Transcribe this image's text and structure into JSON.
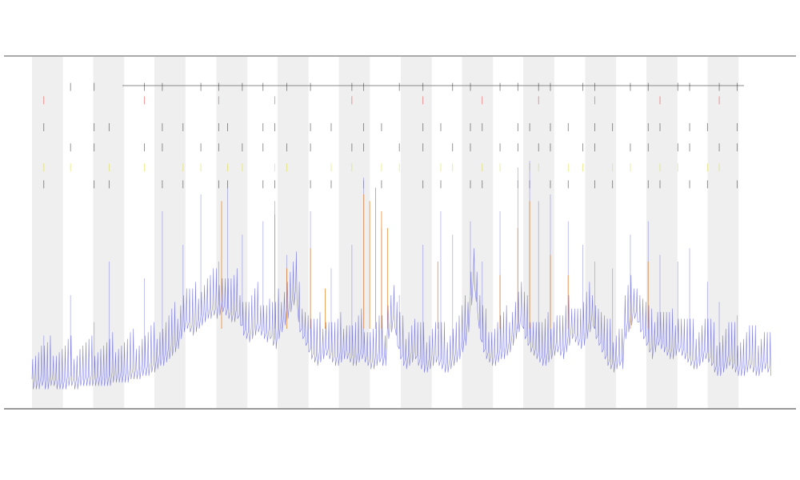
{
  "page": {
    "background": "#ffffff"
  },
  "chart_data": {
    "type": "line",
    "title": "",
    "subtitle": [],
    "xlabel": "",
    "ylabel": "",
    "grid": false,
    "legend_position": "top-left",
    "legend": [],
    "colors": {
      "main_series": "#6b6bdc",
      "band_fill": "#efefef",
      "spike_orange": "#e07a1a",
      "spike_yellow": "#d9d92a",
      "spike_red": "#e03030",
      "spike_black": "#222222",
      "axis": "#555555"
    },
    "x_range": [
      0,
      1000
    ],
    "y_range": [
      0,
      100
    ],
    "shaded_bands": [
      {
        "x0": 0,
        "x1": 42
      },
      {
        "x0": 83,
        "x1": 125
      },
      {
        "x0": 166,
        "x1": 208
      },
      {
        "x0": 250,
        "x1": 292
      },
      {
        "x0": 333,
        "x1": 375
      },
      {
        "x0": 416,
        "x1": 458
      },
      {
        "x0": 500,
        "x1": 542
      },
      {
        "x0": 583,
        "x1": 625
      },
      {
        "x0": 666,
        "x1": 708
      },
      {
        "x0": 750,
        "x1": 792
      },
      {
        "x0": 833,
        "x1": 875
      },
      {
        "x0": 916,
        "x1": 958
      }
    ],
    "series": [
      {
        "values": [
          5,
          5,
          5,
          6,
          5,
          5,
          6,
          6,
          5,
          5,
          5,
          5,
          6,
          6,
          5,
          5,
          6,
          6,
          6,
          6,
          6,
          6,
          6,
          6,
          6,
          6,
          6,
          7,
          7,
          7,
          7,
          7,
          7,
          8,
          8,
          8,
          8,
          9,
          9,
          9,
          10,
          10,
          11,
          12,
          12,
          13,
          14,
          15,
          16,
          17,
          20,
          22,
          23,
          22,
          21,
          22,
          23,
          24,
          25,
          26,
          26,
          27,
          26,
          27,
          28,
          27,
          26,
          25,
          25,
          26,
          24,
          21,
          20,
          19,
          20,
          21,
          22,
          21,
          20,
          19,
          20,
          18,
          17,
          20,
          22,
          24,
          26,
          28,
          30,
          32,
          22,
          20,
          18,
          16,
          14,
          13,
          12,
          13,
          14,
          15,
          14,
          13,
          12,
          12,
          13,
          14,
          14,
          13,
          12,
          12,
          13,
          14,
          13,
          12,
          11,
          11,
          12,
          13,
          12,
          12,
          20,
          22,
          24,
          18,
          14,
          12,
          11,
          12,
          13,
          14,
          12,
          11,
          10,
          10,
          11,
          12,
          13,
          12,
          11,
          10,
          10,
          11,
          12,
          13,
          14,
          16,
          18,
          22,
          30,
          36,
          28,
          20,
          16,
          14,
          13,
          12,
          12,
          13,
          14,
          14,
          15,
          16,
          18,
          20,
          22,
          24,
          20,
          18,
          16,
          15,
          14,
          13,
          12,
          12,
          13,
          14,
          15,
          16,
          15,
          14,
          16,
          18,
          20,
          19,
          18,
          17,
          18,
          20,
          22,
          24,
          20,
          18,
          16,
          14,
          12,
          11,
          10,
          11,
          12,
          11,
          20,
          22,
          24,
          26,
          25,
          22,
          20,
          18,
          16,
          14,
          16,
          18,
          17,
          16,
          15,
          14,
          14,
          15,
          16,
          15,
          14,
          13,
          12,
          11,
          11,
          12,
          13,
          14,
          13,
          12,
          10,
          9,
          9,
          10,
          11,
          12,
          11,
          10,
          9,
          9,
          9,
          10,
          11,
          10,
          9,
          9,
          10,
          11,
          10,
          9
        ],
        "spikes": [
          {
            "x": 4,
            "v": 18
          },
          {
            "x": 13,
            "v": 30
          },
          {
            "x": 21,
            "v": 22
          },
          {
            "x": 26,
            "v": 40
          },
          {
            "x": 38,
            "v": 35
          },
          {
            "x": 44,
            "v": 55
          },
          {
            "x": 51,
            "v": 45
          },
          {
            "x": 57,
            "v": 60
          },
          {
            "x": 63,
            "v": 40
          },
          {
            "x": 66,
            "v": 62
          },
          {
            "x": 71,
            "v": 48
          },
          {
            "x": 78,
            "v": 52
          },
          {
            "x": 82,
            "v": 58
          },
          {
            "x": 86,
            "v": 42
          },
          {
            "x": 94,
            "v": 55
          },
          {
            "x": 101,
            "v": 38
          },
          {
            "x": 108,
            "v": 45
          },
          {
            "x": 112,
            "v": 65
          },
          {
            "x": 118,
            "v": 50
          },
          {
            "x": 124,
            "v": 30
          },
          {
            "x": 132,
            "v": 45
          },
          {
            "x": 138,
            "v": 55
          },
          {
            "x": 142,
            "v": 48
          },
          {
            "x": 148,
            "v": 52
          },
          {
            "x": 152,
            "v": 40
          },
          {
            "x": 158,
            "v": 55
          },
          {
            "x": 164,
            "v": 68
          },
          {
            "x": 168,
            "v": 70
          },
          {
            "x": 171,
            "v": 58
          },
          {
            "x": 175,
            "v": 60
          },
          {
            "x": 181,
            "v": 52
          },
          {
            "x": 186,
            "v": 45
          },
          {
            "x": 190,
            "v": 40
          },
          {
            "x": 196,
            "v": 38
          },
          {
            "x": 202,
            "v": 48
          },
          {
            "x": 208,
            "v": 52
          },
          {
            "x": 212,
            "v": 42
          },
          {
            "x": 218,
            "v": 40
          },
          {
            "x": 222,
            "v": 44
          },
          {
            "x": 228,
            "v": 34
          },
          {
            "x": 232,
            "v": 28
          },
          {
            "x": 238,
            "v": 24
          }
        ],
        "orange_spikes": [
          {
            "x": 64,
            "v": 58
          },
          {
            "x": 82,
            "v": 54
          },
          {
            "x": 86,
            "v": 38
          },
          {
            "x": 94,
            "v": 44
          },
          {
            "x": 99,
            "v": 32
          },
          {
            "x": 112,
            "v": 60
          },
          {
            "x": 114,
            "v": 58
          },
          {
            "x": 116,
            "v": 62
          },
          {
            "x": 118,
            "v": 55
          },
          {
            "x": 120,
            "v": 50
          },
          {
            "x": 137,
            "v": 40
          },
          {
            "x": 158,
            "v": 36
          },
          {
            "x": 164,
            "v": 50
          },
          {
            "x": 168,
            "v": 58
          },
          {
            "x": 175,
            "v": 42
          },
          {
            "x": 181,
            "v": 36
          },
          {
            "x": 202,
            "v": 30
          },
          {
            "x": 208,
            "v": 40
          }
        ]
      }
    ],
    "top_rows": [
      {
        "color": "#222222",
        "y": 92
      },
      {
        "color": "#e03030",
        "y": 88
      },
      {
        "color": "#222222",
        "y": 80
      },
      {
        "color": "#222222",
        "y": 74
      },
      {
        "color": "#d9d92a",
        "y": 68
      },
      {
        "color": "#222222",
        "y": 63
      }
    ]
  }
}
